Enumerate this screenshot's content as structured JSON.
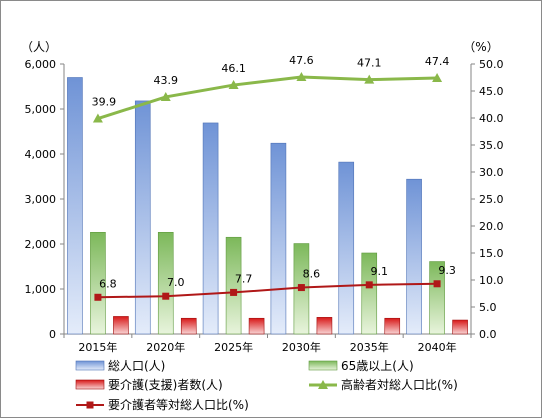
{
  "chart_data": {
    "type": "bar",
    "categories": [
      "2015年",
      "2020年",
      "2025年",
      "2030年",
      "2035年",
      "2040年"
    ],
    "left_axis": {
      "unit": "（人）",
      "ylim": [
        0,
        6000
      ],
      "ticks": [
        "0",
        "1,000",
        "2,000",
        "3,000",
        "4,000",
        "5,000",
        "6,000"
      ]
    },
    "right_axis": {
      "unit": "（%）",
      "ylim": [
        0,
        50
      ],
      "ticks": [
        "0.0",
        "5.0",
        "10.0",
        "15.0",
        "20.0",
        "25.0",
        "30.0",
        "35.0",
        "40.0",
        "45.0",
        "50.0"
      ]
    },
    "series": [
      {
        "name": "総人口(人)",
        "kind": "bar",
        "axis": "left",
        "color": "#6f93d6",
        "values": [
          5700,
          5180,
          4690,
          4240,
          3820,
          3440
        ]
      },
      {
        "name": "65歳以上(人)",
        "kind": "bar",
        "axis": "left",
        "color": "#8cc26a",
        "values": [
          2260,
          2260,
          2150,
          2010,
          1800,
          1610
        ]
      },
      {
        "name": "要介護(支援)者数(人)",
        "kind": "bar",
        "axis": "left",
        "color": "#e02020",
        "values": [
          390,
          350,
          350,
          370,
          350,
          310
        ]
      },
      {
        "name": "高齢者対総人口比(%)",
        "kind": "line",
        "axis": "right",
        "color": "#8ab84a",
        "marker": "triangle",
        "values": [
          39.9,
          43.9,
          46.1,
          47.6,
          47.1,
          47.4
        ],
        "labels": [
          "39.9",
          "43.9",
          "46.1",
          "47.6",
          "47.1",
          "47.4"
        ]
      },
      {
        "name": "要介護者等対総人口比(%)",
        "kind": "line",
        "axis": "right",
        "color": "#b01818",
        "marker": "square",
        "values": [
          6.8,
          7.0,
          7.7,
          8.6,
          9.1,
          9.3
        ],
        "labels": [
          "6.8",
          "7.0",
          "7.7",
          "8.6",
          "9.1",
          "9.3"
        ]
      }
    ],
    "grid": false,
    "legend_position": "bottom"
  }
}
